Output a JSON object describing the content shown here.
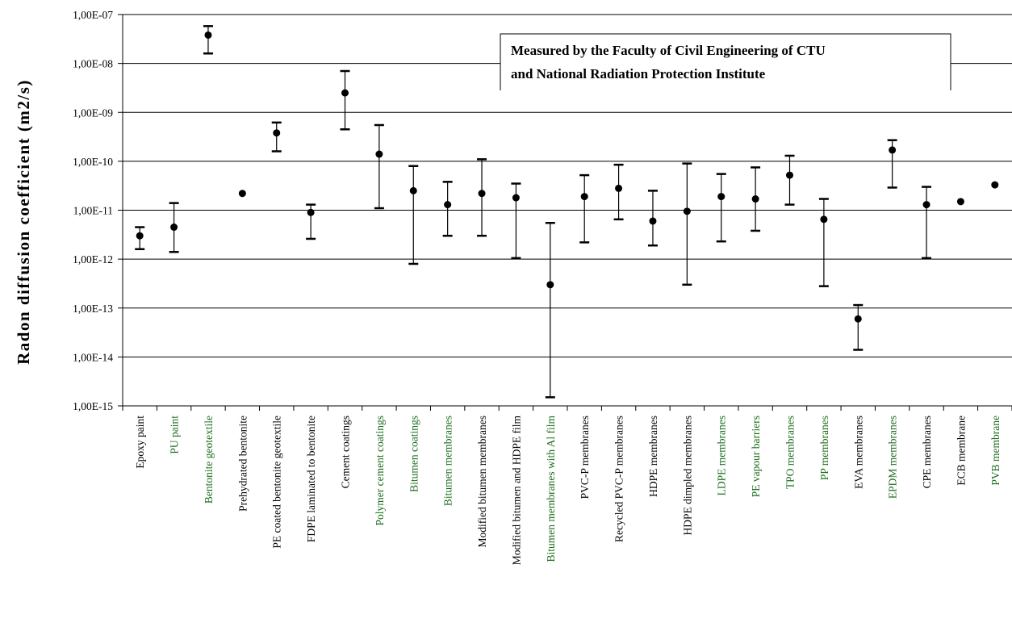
{
  "chart_data": {
    "type": "scatter",
    "title": "",
    "xlabel": "",
    "ylabel": "Radon diffusion coefficient (m2/s)",
    "yscale": "log",
    "ylim": [
      1e-15,
      1e-07
    ],
    "yticks": [
      "1,00E-07",
      "1,00E-08",
      "1,00E-09",
      "1,00E-10",
      "1,00E-11",
      "1,00E-12",
      "1,00E-13",
      "1,00E-14",
      "1,00E-15"
    ],
    "grid": "horizontal",
    "error_bars": true,
    "annotation": [
      "Measured by the Faculty of Civil Engineering of CTU",
      "and National Radiation Protection Institute"
    ],
    "categories": [
      {
        "label": "Epoxy paint",
        "value": 3e-12,
        "low": 1.6e-12,
        "high": 4.5e-12,
        "color": "#000000"
      },
      {
        "label": "PU paint",
        "value": 4.5e-12,
        "low": 1.4e-12,
        "high": 1.4e-11,
        "color": "#1a6b1a"
      },
      {
        "label": "Bentonite geotextile",
        "value": 3.8e-08,
        "low": 1.6e-08,
        "high": 5.8e-08,
        "color": "#1a6b1a"
      },
      {
        "label": "Prehydrated bentonite",
        "value": 2.2e-11,
        "low": null,
        "high": null,
        "color": "#000000"
      },
      {
        "label": "PE coated bentonite geotextile",
        "value": 3.8e-10,
        "low": 1.6e-10,
        "high": 6.2e-10,
        "color": "#000000"
      },
      {
        "label": "FDPE laminated to bentonite",
        "value": 9e-12,
        "low": 2.6e-12,
        "high": 1.3e-11,
        "color": "#000000"
      },
      {
        "label": "Cement coatings",
        "value": 2.5e-09,
        "low": 4.5e-10,
        "high": 7e-09,
        "color": "#000000"
      },
      {
        "label": "Polymer cement coatings",
        "value": 1.4e-10,
        "low": 1.1e-11,
        "high": 5.5e-10,
        "color": "#1a6b1a"
      },
      {
        "label": "Bitumen coatings",
        "value": 2.5e-11,
        "low": 8e-13,
        "high": 8e-11,
        "color": "#1a6b1a"
      },
      {
        "label": "Bitumen membranes",
        "value": 1.3e-11,
        "low": 3e-12,
        "high": 3.8e-11,
        "color": "#1a6b1a"
      },
      {
        "label": "Modified bitumen membranes",
        "value": 2.2e-11,
        "low": 3e-12,
        "high": 1.1e-10,
        "color": "#000000"
      },
      {
        "label": "Modified bitumen and HDPE film",
        "value": 1.8e-11,
        "low": 1.05e-12,
        "high": 3.5e-11,
        "color": "#000000"
      },
      {
        "label": "Bitumen membranes with Al film",
        "value": 3e-13,
        "low": 1.5e-15,
        "high": 5.5e-12,
        "color": "#1a6b1a"
      },
      {
        "label": "PVC-P membranes",
        "value": 1.9e-11,
        "low": 2.2e-12,
        "high": 5.2e-11,
        "color": "#000000"
      },
      {
        "label": "Recycled PVC-P membranes",
        "value": 2.8e-11,
        "low": 6.5e-12,
        "high": 8.5e-11,
        "color": "#000000"
      },
      {
        "label": "HDPE membranes",
        "value": 6e-12,
        "low": 1.9e-12,
        "high": 2.5e-11,
        "color": "#000000"
      },
      {
        "label": "HDPE dimpled membranes",
        "value": 9.5e-12,
        "low": 3e-13,
        "high": 9e-11,
        "color": "#000000"
      },
      {
        "label": "LDPE membranes",
        "value": 1.9e-11,
        "low": 2.3e-12,
        "high": 5.5e-11,
        "color": "#1a6b1a"
      },
      {
        "label": "PE vapour barriers",
        "value": 1.7e-11,
        "low": 3.8e-12,
        "high": 7.5e-11,
        "color": "#1a6b1a"
      },
      {
        "label": "TPO membranes",
        "value": 5.2e-11,
        "low": 1.3e-11,
        "high": 1.3e-10,
        "color": "#1a6b1a"
      },
      {
        "label": "PP membranes",
        "value": 6.5e-12,
        "low": 2.8e-13,
        "high": 1.7e-11,
        "color": "#1a6b1a"
      },
      {
        "label": "EVA membranes",
        "value": 6e-14,
        "low": 1.4e-14,
        "high": 1.15e-13,
        "color": "#000000"
      },
      {
        "label": "EPDM membranes",
        "value": 1.7e-10,
        "low": 2.9e-11,
        "high": 2.7e-10,
        "color": "#1a6b1a"
      },
      {
        "label": "CPE membranes",
        "value": 1.3e-11,
        "low": 1.05e-12,
        "high": 3e-11,
        "color": "#000000"
      },
      {
        "label": "ECB membrane",
        "value": 1.5e-11,
        "low": null,
        "high": null,
        "color": "#000000"
      },
      {
        "label": "PVB membrane",
        "value": 3.3e-11,
        "low": null,
        "high": null,
        "color": "#1a6b1a"
      }
    ]
  }
}
